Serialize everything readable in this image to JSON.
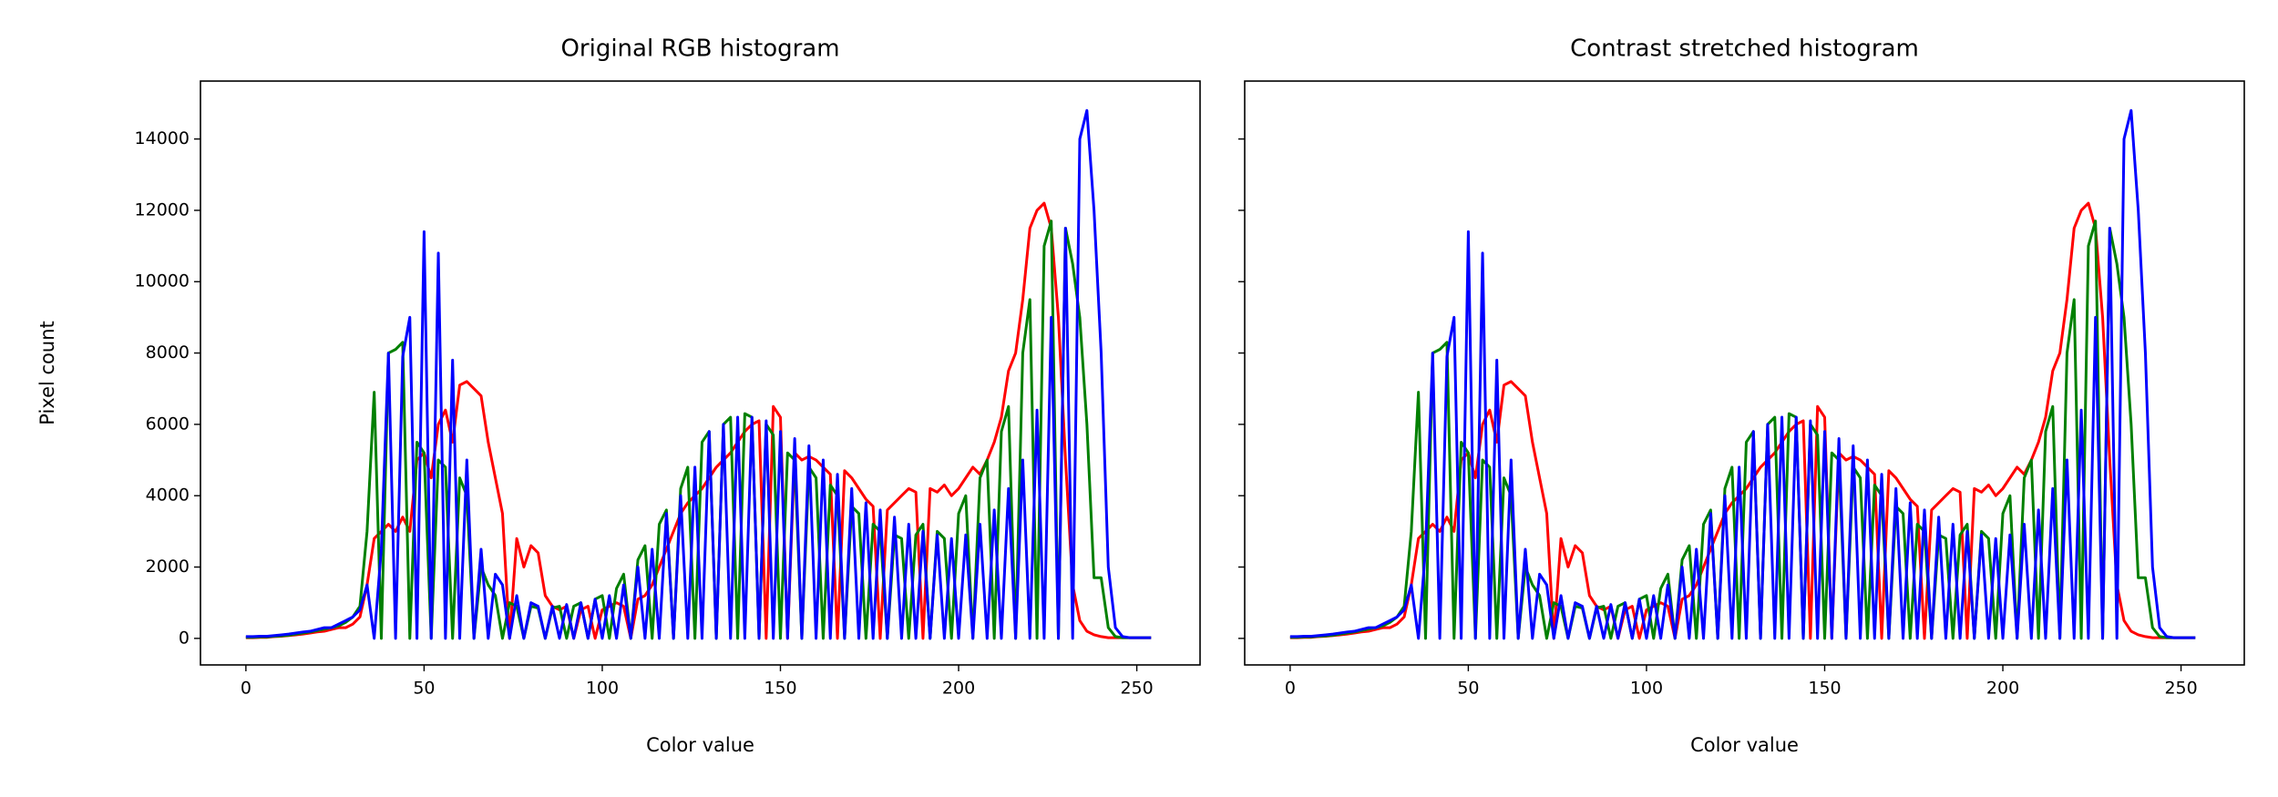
{
  "chart_data": [
    {
      "type": "line",
      "title": "Original RGB histogram",
      "xlabel": "Color value",
      "ylabel": "Pixel count",
      "x": [
        0,
        2,
        4,
        6,
        8,
        10,
        12,
        14,
        16,
        18,
        20,
        22,
        24,
        26,
        28,
        30,
        32,
        34,
        36,
        38,
        40,
        42,
        44,
        46,
        48,
        50,
        52,
        54,
        56,
        58,
        60,
        62,
        64,
        66,
        68,
        70,
        72,
        74,
        76,
        78,
        80,
        82,
        84,
        86,
        88,
        90,
        92,
        94,
        96,
        98,
        100,
        102,
        104,
        106,
        108,
        110,
        112,
        114,
        116,
        118,
        120,
        122,
        124,
        126,
        128,
        130,
        132,
        134,
        136,
        138,
        140,
        142,
        144,
        146,
        148,
        150,
        152,
        154,
        156,
        158,
        160,
        162,
        164,
        166,
        168,
        170,
        172,
        174,
        176,
        178,
        180,
        182,
        184,
        186,
        188,
        190,
        192,
        194,
        196,
        198,
        200,
        202,
        204,
        206,
        208,
        210,
        212,
        214,
        216,
        218,
        220,
        222,
        224,
        226,
        228,
        230,
        232,
        234,
        236,
        238,
        240,
        242,
        244,
        246,
        248,
        250,
        252,
        254
      ],
      "series": [
        {
          "color": "#ff0000",
          "values": [
            20,
            20,
            30,
            30,
            50,
            60,
            80,
            100,
            120,
            150,
            180,
            200,
            250,
            300,
            300,
            400,
            600,
            1500,
            2800,
            3000,
            3200,
            3000,
            3400,
            3000,
            5000,
            5200,
            4500,
            6000,
            6400,
            5500,
            7100,
            7200,
            7000,
            6800,
            5500,
            4500,
            3500,
            0,
            2800,
            2000,
            2600,
            2400,
            1200,
            900,
            800,
            900,
            0,
            800,
            900,
            0,
            800,
            900,
            1000,
            900,
            0,
            1100,
            1200,
            1500,
            2000,
            2500,
            3000,
            3500,
            3800,
            4000,
            4200,
            4500,
            4800,
            5000,
            5200,
            5500,
            5800,
            6000,
            6100,
            0,
            6500,
            6200,
            0,
            5200,
            5000,
            5100,
            5000,
            4800,
            4600,
            0,
            4700,
            4500,
            4200,
            3900,
            3700,
            0,
            3600,
            3800,
            4000,
            4200,
            4100,
            0,
            4200,
            4100,
            4300,
            4000,
            4200,
            4500,
            4800,
            4600,
            5000,
            5500,
            6200,
            7500,
            8000,
            9500,
            11500,
            12000,
            12200,
            11500,
            9000,
            5000,
            1500,
            500,
            200,
            100,
            50,
            20,
            20,
            20,
            20,
            20,
            20,
            20
          ]
        },
        {
          "color": "#008000",
          "values": [
            30,
            30,
            40,
            40,
            60,
            70,
            90,
            120,
            150,
            180,
            220,
            260,
            300,
            350,
            450,
            600,
            900,
            3000,
            6900,
            0,
            8000,
            8100,
            8300,
            0,
            5500,
            5200,
            0,
            5000,
            4800,
            0,
            4500,
            4000,
            0,
            2000,
            1500,
            1200,
            0,
            1000,
            900,
            0,
            900,
            850,
            0,
            850,
            900,
            0,
            900,
            1000,
            0,
            1100,
            1200,
            0,
            1400,
            1800,
            0,
            2200,
            2600,
            0,
            3200,
            3600,
            0,
            4200,
            4800,
            0,
            5500,
            5800,
            0,
            6000,
            6200,
            0,
            6300,
            6200,
            0,
            6000,
            5700,
            0,
            5200,
            5000,
            0,
            4800,
            4500,
            0,
            4300,
            4000,
            0,
            3700,
            3500,
            0,
            3200,
            3000,
            0,
            2900,
            2800,
            0,
            2900,
            3200,
            0,
            3000,
            2800,
            0,
            3500,
            4000,
            0,
            4500,
            5000,
            0,
            5800,
            6500,
            0,
            8000,
            9500,
            0,
            11000,
            11700,
            0,
            11500,
            10500,
            9000,
            6000,
            1700,
            1700,
            300,
            50,
            20,
            20,
            20,
            20,
            20
          ]
        },
        {
          "color": "#0000ff",
          "values": [
            50,
            50,
            60,
            60,
            80,
            100,
            120,
            150,
            180,
            200,
            250,
            300,
            300,
            400,
            500,
            600,
            800,
            1500,
            0,
            2500,
            8000,
            0,
            7900,
            9000,
            0,
            11400,
            0,
            10800,
            0,
            7800,
            0,
            5000,
            0,
            2500,
            0,
            1800,
            1500,
            0,
            1200,
            0,
            1000,
            900,
            0,
            900,
            0,
            950,
            0,
            1000,
            0,
            1100,
            0,
            1200,
            0,
            1500,
            0,
            2000,
            0,
            2500,
            0,
            3500,
            0,
            4000,
            0,
            4800,
            0,
            5800,
            0,
            6000,
            0,
            6200,
            0,
            6200,
            0,
            6100,
            0,
            5800,
            0,
            5600,
            0,
            5400,
            0,
            5000,
            0,
            4600,
            0,
            4200,
            0,
            3800,
            0,
            3600,
            0,
            3400,
            0,
            3200,
            0,
            3000,
            0,
            2900,
            0,
            2800,
            0,
            2900,
            0,
            3200,
            0,
            3600,
            0,
            4200,
            0,
            5000,
            0,
            6400,
            0,
            9000,
            0,
            11500,
            0,
            14000,
            14800,
            12000,
            8000,
            2000,
            300,
            50,
            20,
            20,
            20,
            20
          ]
        }
      ],
      "xlim": [
        -12.75,
        267.75
      ],
      "xticks": [
        0,
        50,
        100,
        150,
        200,
        250
      ],
      "ylim": [
        -744,
        15624
      ],
      "yticks": [
        0,
        2000,
        4000,
        6000,
        8000,
        10000,
        12000,
        14000
      ],
      "ytick_labels": true
    },
    {
      "type": "line",
      "title": "Contrast stretched histogram",
      "xlabel": "Color value",
      "x": [
        0,
        2,
        4,
        6,
        8,
        10,
        12,
        14,
        16,
        18,
        20,
        22,
        24,
        26,
        28,
        30,
        32,
        34,
        36,
        38,
        40,
        42,
        44,
        46,
        48,
        50,
        52,
        54,
        56,
        58,
        60,
        62,
        64,
        66,
        68,
        70,
        72,
        74,
        76,
        78,
        80,
        82,
        84,
        86,
        88,
        90,
        92,
        94,
        96,
        98,
        100,
        102,
        104,
        106,
        108,
        110,
        112,
        114,
        116,
        118,
        120,
        122,
        124,
        126,
        128,
        130,
        132,
        134,
        136,
        138,
        140,
        142,
        144,
        146,
        148,
        150,
        152,
        154,
        156,
        158,
        160,
        162,
        164,
        166,
        168,
        170,
        172,
        174,
        176,
        178,
        180,
        182,
        184,
        186,
        188,
        190,
        192,
        194,
        196,
        198,
        200,
        202,
        204,
        206,
        208,
        210,
        212,
        214,
        216,
        218,
        220,
        222,
        224,
        226,
        228,
        230,
        232,
        234,
        236,
        238,
        240,
        242,
        244,
        246,
        248,
        250,
        252,
        254
      ],
      "series": [
        {
          "color": "#ff0000",
          "values": [
            20,
            20,
            30,
            30,
            50,
            60,
            80,
            100,
            120,
            150,
            180,
            200,
            250,
            300,
            300,
            400,
            600,
            1500,
            2800,
            3000,
            3200,
            3000,
            3400,
            3000,
            5000,
            5200,
            4500,
            6000,
            6400,
            5500,
            7100,
            7200,
            7000,
            6800,
            5500,
            4500,
            3500,
            0,
            2800,
            2000,
            2600,
            2400,
            1200,
            900,
            800,
            900,
            0,
            800,
            900,
            0,
            800,
            900,
            1000,
            900,
            0,
            1100,
            1200,
            1500,
            2000,
            2500,
            3000,
            3500,
            3800,
            4000,
            4200,
            4500,
            4800,
            5000,
            5200,
            5500,
            5800,
            6000,
            6100,
            0,
            6500,
            6200,
            0,
            5200,
            5000,
            5100,
            5000,
            4800,
            4600,
            0,
            4700,
            4500,
            4200,
            3900,
            3700,
            0,
            3600,
            3800,
            4000,
            4200,
            4100,
            0,
            4200,
            4100,
            4300,
            4000,
            4200,
            4500,
            4800,
            4600,
            5000,
            5500,
            6200,
            7500,
            8000,
            9500,
            11500,
            12000,
            12200,
            11500,
            9000,
            5000,
            1500,
            500,
            200,
            100,
            50,
            20,
            20,
            20,
            20,
            20,
            20,
            20
          ]
        },
        {
          "color": "#008000",
          "values": [
            30,
            30,
            40,
            40,
            60,
            70,
            90,
            120,
            150,
            180,
            220,
            260,
            300,
            350,
            450,
            600,
            900,
            3000,
            6900,
            0,
            8000,
            8100,
            8300,
            0,
            5500,
            5200,
            0,
            5000,
            4800,
            0,
            4500,
            4000,
            0,
            2000,
            1500,
            1200,
            0,
            1000,
            900,
            0,
            900,
            850,
            0,
            850,
            900,
            0,
            900,
            1000,
            0,
            1100,
            1200,
            0,
            1400,
            1800,
            0,
            2200,
            2600,
            0,
            3200,
            3600,
            0,
            4200,
            4800,
            0,
            5500,
            5800,
            0,
            6000,
            6200,
            0,
            6300,
            6200,
            0,
            6000,
            5700,
            0,
            5200,
            5000,
            0,
            4800,
            4500,
            0,
            4300,
            4000,
            0,
            3700,
            3500,
            0,
            3200,
            3000,
            0,
            2900,
            2800,
            0,
            2900,
            3200,
            0,
            3000,
            2800,
            0,
            3500,
            4000,
            0,
            4500,
            5000,
            0,
            5800,
            6500,
            0,
            8000,
            9500,
            0,
            11000,
            11700,
            0,
            11500,
            10500,
            9000,
            6000,
            1700,
            1700,
            300,
            50,
            20,
            20,
            20,
            20,
            20
          ]
        },
        {
          "color": "#0000ff",
          "values": [
            50,
            50,
            60,
            60,
            80,
            100,
            120,
            150,
            180,
            200,
            250,
            300,
            300,
            400,
            500,
            600,
            800,
            1500,
            0,
            2500,
            8000,
            0,
            7900,
            9000,
            0,
            11400,
            0,
            10800,
            0,
            7800,
            0,
            5000,
            0,
            2500,
            0,
            1800,
            1500,
            0,
            1200,
            0,
            1000,
            900,
            0,
            900,
            0,
            950,
            0,
            1000,
            0,
            1100,
            0,
            1200,
            0,
            1500,
            0,
            2000,
            0,
            2500,
            0,
            3500,
            0,
            4000,
            0,
            4800,
            0,
            5800,
            0,
            6000,
            0,
            6200,
            0,
            6200,
            0,
            6100,
            0,
            5800,
            0,
            5600,
            0,
            5400,
            0,
            5000,
            0,
            4600,
            0,
            4200,
            0,
            3800,
            0,
            3600,
            0,
            3400,
            0,
            3200,
            0,
            3000,
            0,
            2900,
            0,
            2800,
            0,
            2900,
            0,
            3200,
            0,
            3600,
            0,
            4200,
            0,
            5000,
            0,
            6400,
            0,
            9000,
            0,
            11500,
            0,
            14000,
            14800,
            12000,
            8000,
            2000,
            300,
            50,
            20,
            20,
            20,
            20
          ]
        }
      ],
      "xlim": [
        -12.75,
        267.75
      ],
      "xticks": [
        0,
        50,
        100,
        150,
        200,
        250
      ],
      "ylim": [
        -744,
        15624
      ],
      "yticks": [
        0,
        2000,
        4000,
        6000,
        8000,
        10000,
        12000,
        14000
      ],
      "ytick_labels": false
    }
  ]
}
